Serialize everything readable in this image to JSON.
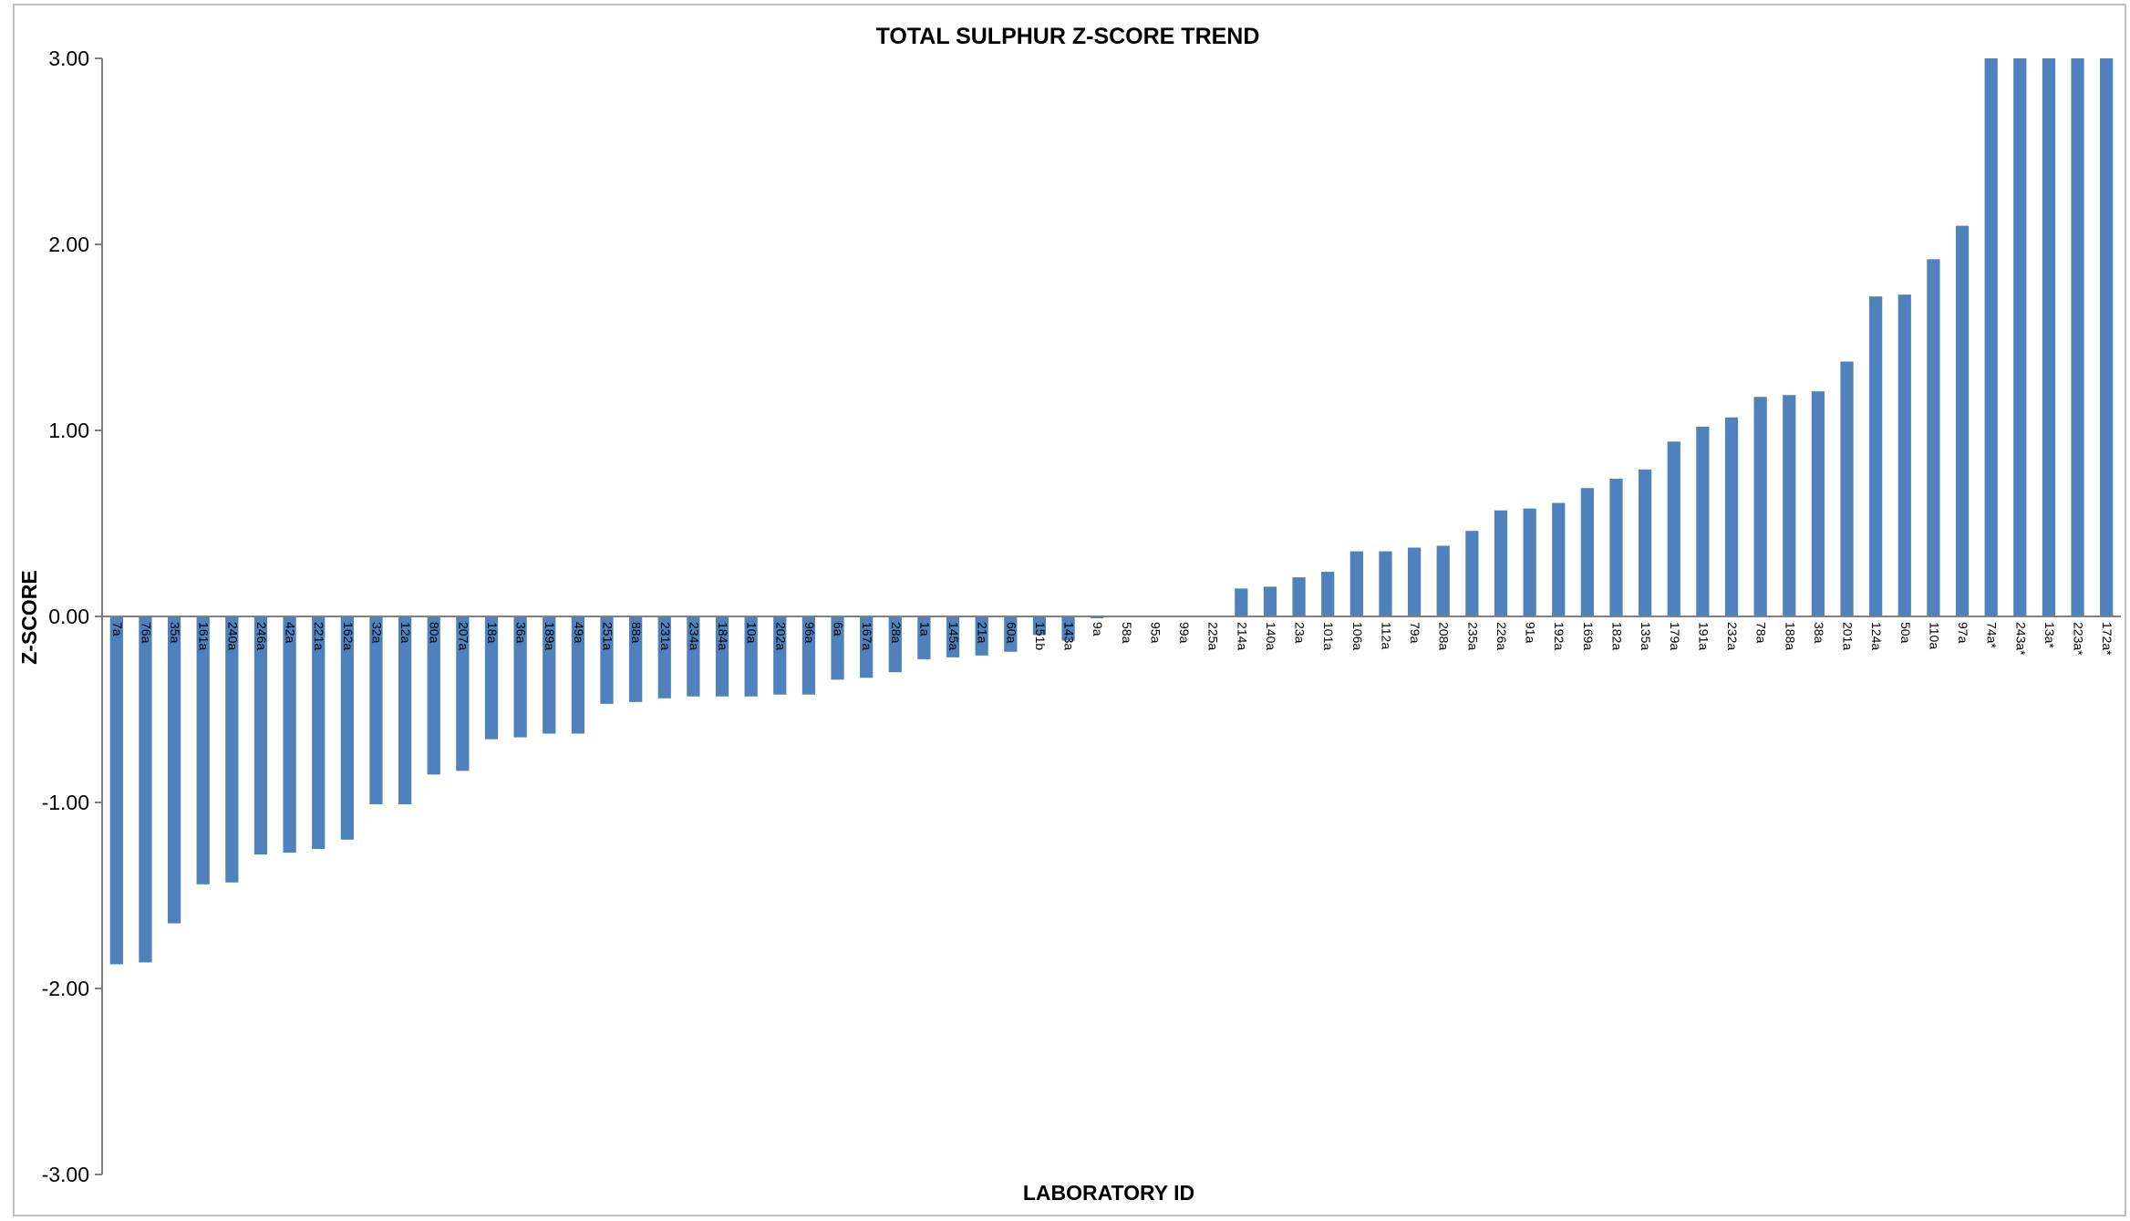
{
  "chart_data": {
    "type": "bar",
    "title": "TOTAL SULPHUR Z-SCORE TREND",
    "xlabel": "LABORATORY ID",
    "ylabel": "Z-SCORE",
    "ylim": [
      -3,
      3
    ],
    "yticks": [
      "3.00",
      "2.00",
      "1.00",
      "0.00",
      "-1.00",
      "-2.00",
      "-3.00"
    ],
    "bar_color": "#4f81bd",
    "grid": false,
    "legend": "none",
    "categories": [
      "7a",
      "76a",
      "35a",
      "161a",
      "240a",
      "246a",
      "42a",
      "221a",
      "162a",
      "32a",
      "12a",
      "80a",
      "207a",
      "18a",
      "36a",
      "189a",
      "49a",
      "251a",
      "88a",
      "231a",
      "234a",
      "184a",
      "10a",
      "202a",
      "96a",
      "6a",
      "167a",
      "28a",
      "1a",
      "145a",
      "21a",
      "60a",
      "151b",
      "143a",
      "9a",
      "58a",
      "95a",
      "99a",
      "225a",
      "214a",
      "140a",
      "23a",
      "101a",
      "106a",
      "112a",
      "79a",
      "208a",
      "235a",
      "226a",
      "91a",
      "192a",
      "169a",
      "182a",
      "135a",
      "179a",
      "191a",
      "232a",
      "78a",
      "188a",
      "38a",
      "201a",
      "124a",
      "50a",
      "110a",
      "97a",
      "74a*",
      "243a*",
      "13a*",
      "223a*",
      "172a*"
    ],
    "values": [
      -1.87,
      -1.86,
      -1.65,
      -1.44,
      -1.43,
      -1.28,
      -1.27,
      -1.25,
      -1.2,
      -1.01,
      -1.01,
      -0.85,
      -0.83,
      -0.66,
      -0.65,
      -0.63,
      -0.63,
      -0.47,
      -0.46,
      -0.44,
      -0.43,
      -0.43,
      -0.43,
      -0.42,
      -0.42,
      -0.34,
      -0.33,
      -0.3,
      -0.23,
      -0.22,
      -0.21,
      -0.19,
      -0.1,
      -0.13,
      -0.01,
      0.0,
      0.0,
      0.0,
      0.0,
      0.15,
      0.16,
      0.21,
      0.24,
      0.35,
      0.35,
      0.37,
      0.38,
      0.46,
      0.57,
      0.58,
      0.61,
      0.69,
      0.74,
      0.79,
      0.94,
      1.02,
      1.07,
      1.18,
      1.19,
      1.21,
      1.37,
      1.72,
      1.73,
      1.92,
      2.1,
      3.0,
      3.0,
      3.0,
      3.0,
      3.0
    ]
  }
}
